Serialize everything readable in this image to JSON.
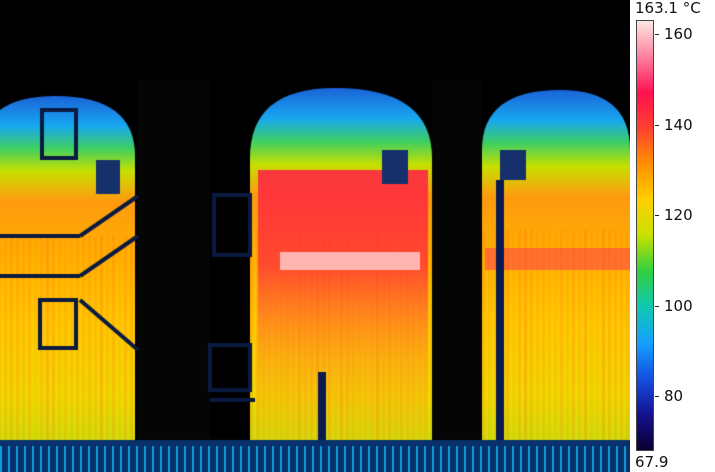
{
  "colorbar": {
    "max_label": "163.1 °C",
    "min_label": "67.9",
    "max_value": 163.1,
    "min_value": 67.9,
    "ticks": [
      {
        "value": 160,
        "label": "160"
      },
      {
        "value": 140,
        "label": "140"
      },
      {
        "value": 120,
        "label": "120"
      },
      {
        "value": 100,
        "label": "100"
      },
      {
        "value": 80,
        "label": "80"
      }
    ],
    "palette": [
      "#0a0030",
      "#14128f",
      "#1450e0",
      "#14a0ff",
      "#10c8b0",
      "#30d040",
      "#c8e000",
      "#ffd000",
      "#ff9000",
      "#ff4030",
      "#ff1050",
      "#ff80a0",
      "#ffe8e0"
    ]
  }
}
